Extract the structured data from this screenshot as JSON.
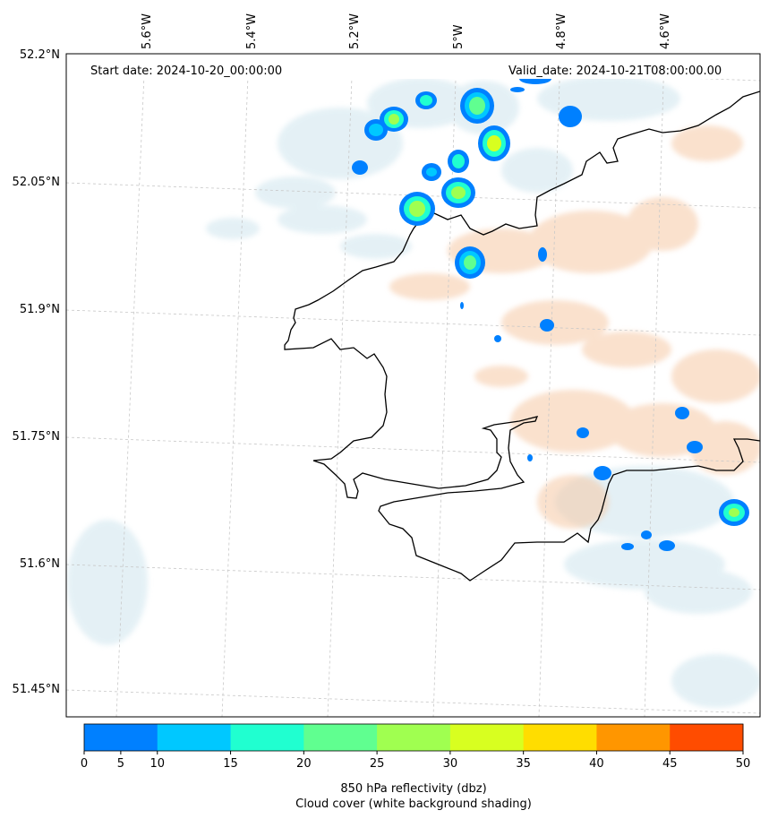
{
  "map": {
    "start_date": "Start date: 2024-10-20_00:00:00",
    "valid_date": "Valid_date: 2024-10-21T08:00:00.00",
    "lon_labels": [
      "5.6°W",
      "5.4°W",
      "5.2°W",
      "5°W",
      "4.8°W",
      "4.6°W"
    ],
    "lat_labels": [
      "52.2°N",
      "52.05°N",
      "51.9°N",
      "51.75°N",
      "51.6°N",
      "51.45°N"
    ]
  },
  "colorbar": {
    "ticks": [
      "0",
      "5",
      "10",
      "15",
      "20",
      "25",
      "30",
      "35",
      "40",
      "45",
      "50"
    ],
    "colors": [
      "#0080ff",
      "#00c8ff",
      "#20ffd0",
      "#60ff90",
      "#a0ff50",
      "#d8ff20",
      "#ffdd00",
      "#ff9600",
      "#ff4c00"
    ],
    "label_line1": "850 hPa reflectivity (dbz)",
    "label_line2": "Cloud cover (white background shading)"
  },
  "colors": {
    "cloud": "#cfe5ee",
    "warm": "#f6c9a6",
    "coast": "#000000"
  }
}
